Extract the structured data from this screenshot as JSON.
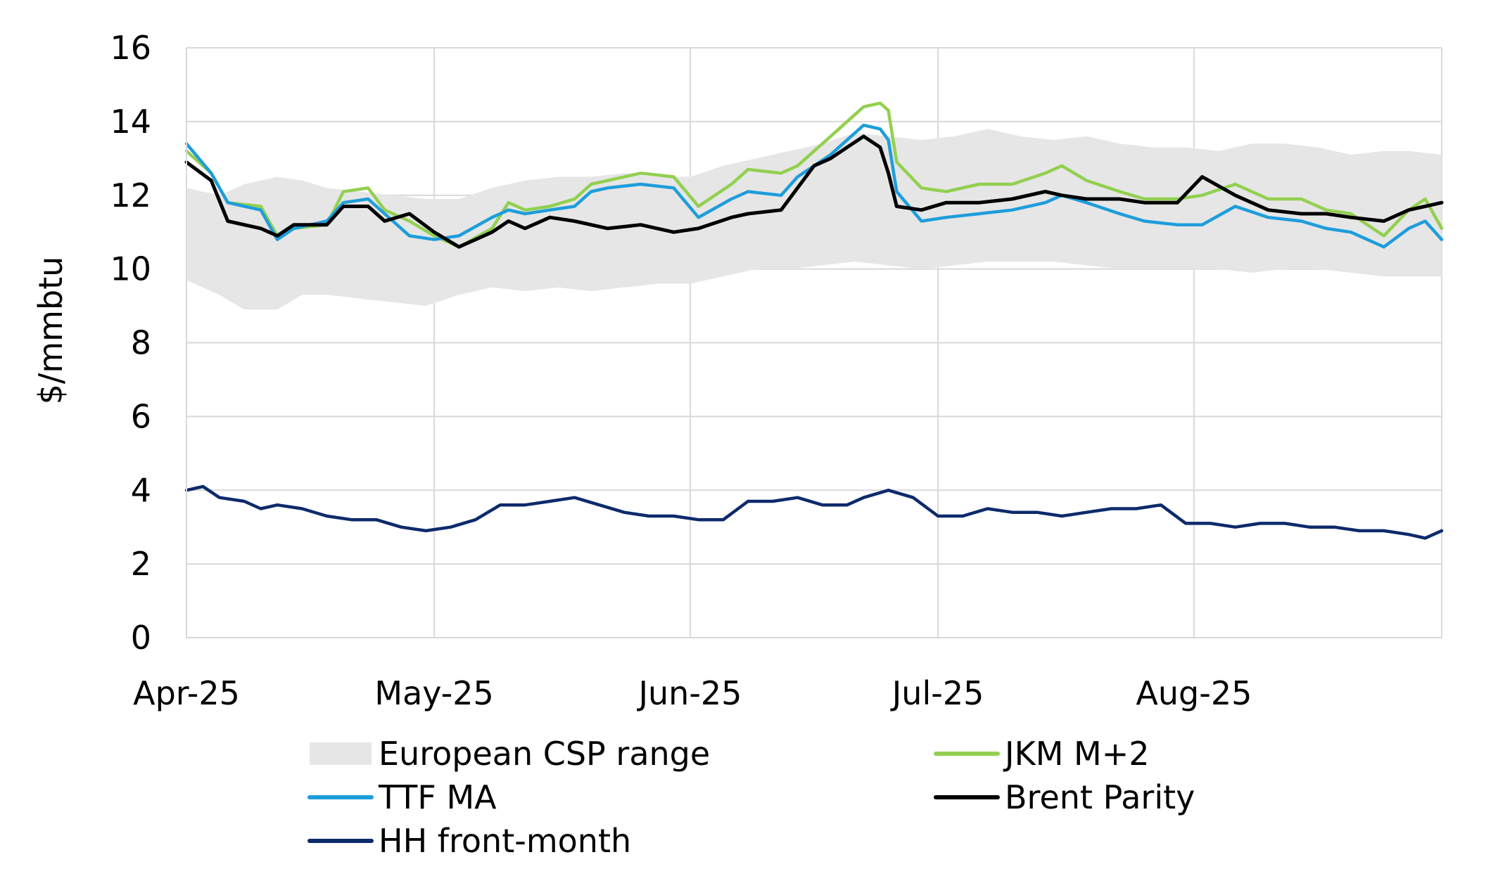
{
  "chart_data": {
    "type": "line",
    "ylabel": "$/mmbtu",
    "xlabel": "",
    "ylim": [
      0,
      16
    ],
    "yticks": [
      0,
      2,
      4,
      6,
      8,
      10,
      12,
      14,
      16
    ],
    "xlim": [
      "2025-04-01",
      "2025-08-31"
    ],
    "xticks": [
      {
        "date": "2025-04-01",
        "label": "Apr-25"
      },
      {
        "date": "2025-05-01",
        "label": "May-25"
      },
      {
        "date": "2025-06-01",
        "label": "Jun-25"
      },
      {
        "date": "2025-07-01",
        "label": "Jul-25"
      },
      {
        "date": "2025-08-01",
        "label": "Aug-25"
      }
    ],
    "grid": true,
    "legend_position": "bottom",
    "colors": {
      "band": "#e6e6e6",
      "jkm": "#92d050",
      "ttf": "#1e9ddb",
      "brent": "#000000",
      "hh": "#0d2a6b",
      "grid": "#d9d9d9"
    },
    "band": {
      "name": "European CSP range",
      "x": [
        "2025-04-01",
        "2025-04-05",
        "2025-04-08",
        "2025-04-12",
        "2025-04-15",
        "2025-04-18",
        "2025-04-22",
        "2025-04-26",
        "2025-04-30",
        "2025-05-04",
        "2025-05-08",
        "2025-05-12",
        "2025-05-16",
        "2025-05-20",
        "2025-05-24",
        "2025-05-28",
        "2025-06-01",
        "2025-06-05",
        "2025-06-09",
        "2025-06-13",
        "2025-06-17",
        "2025-06-21",
        "2025-06-25",
        "2025-06-29",
        "2025-07-03",
        "2025-07-07",
        "2025-07-11",
        "2025-07-15",
        "2025-07-19",
        "2025-07-23",
        "2025-07-27",
        "2025-07-31",
        "2025-08-04",
        "2025-08-08",
        "2025-08-12",
        "2025-08-16",
        "2025-08-20",
        "2025-08-24",
        "2025-08-27",
        "2025-08-31"
      ],
      "low": [
        9.7,
        9.3,
        8.9,
        8.9,
        9.3,
        9.3,
        9.2,
        9.1,
        9.0,
        9.3,
        9.5,
        9.4,
        9.5,
        9.4,
        9.5,
        9.6,
        9.6,
        9.8,
        10.0,
        10.0,
        10.1,
        10.2,
        10.1,
        10.0,
        10.1,
        10.2,
        10.2,
        10.2,
        10.1,
        10.0,
        10.0,
        10.0,
        10.0,
        9.9,
        10.0,
        10.0,
        9.9,
        9.8,
        9.8,
        9.8
      ],
      "high": [
        12.2,
        12.0,
        12.3,
        12.5,
        12.4,
        12.2,
        12.1,
        12.0,
        11.9,
        11.9,
        12.2,
        12.4,
        12.5,
        12.5,
        12.6,
        12.5,
        12.5,
        12.8,
        13.0,
        13.2,
        13.4,
        13.7,
        13.6,
        13.5,
        13.6,
        13.8,
        13.6,
        13.5,
        13.6,
        13.4,
        13.3,
        13.3,
        13.2,
        13.4,
        13.4,
        13.3,
        13.1,
        13.2,
        13.2,
        13.1
      ]
    },
    "series": [
      {
        "name": "JKM M+2",
        "key": "jkm",
        "x": [
          "2025-04-01",
          "2025-04-04",
          "2025-04-06",
          "2025-04-10",
          "2025-04-12",
          "2025-04-14",
          "2025-04-18",
          "2025-04-20",
          "2025-04-23",
          "2025-04-25",
          "2025-04-28",
          "2025-05-01",
          "2025-05-04",
          "2025-05-08",
          "2025-05-10",
          "2025-05-12",
          "2025-05-15",
          "2025-05-18",
          "2025-05-20",
          "2025-05-22",
          "2025-05-26",
          "2025-05-30",
          "2025-06-02",
          "2025-06-06",
          "2025-06-08",
          "2025-06-12",
          "2025-06-14",
          "2025-06-16",
          "2025-06-18",
          "2025-06-20",
          "2025-06-22",
          "2025-06-24",
          "2025-06-25",
          "2025-06-26",
          "2025-06-29",
          "2025-07-02",
          "2025-07-06",
          "2025-07-10",
          "2025-07-14",
          "2025-07-16",
          "2025-07-19",
          "2025-07-23",
          "2025-07-26",
          "2025-07-30",
          "2025-08-02",
          "2025-08-06",
          "2025-08-10",
          "2025-08-14",
          "2025-08-17",
          "2025-08-20",
          "2025-08-24",
          "2025-08-27",
          "2025-08-29",
          "2025-08-31"
        ],
        "values": [
          13.2,
          12.6,
          11.8,
          11.7,
          10.9,
          11.1,
          11.2,
          12.1,
          12.2,
          11.6,
          11.3,
          10.9,
          10.6,
          11.1,
          11.8,
          11.6,
          11.7,
          11.9,
          12.3,
          12.4,
          12.6,
          12.5,
          11.7,
          12.3,
          12.7,
          12.6,
          12.8,
          13.2,
          13.6,
          14.0,
          14.4,
          14.5,
          14.3,
          12.9,
          12.2,
          12.1,
          12.3,
          12.3,
          12.6,
          12.8,
          12.4,
          12.1,
          11.9,
          11.9,
          12.0,
          12.3,
          11.9,
          11.9,
          11.6,
          11.5,
          10.9,
          11.6,
          11.9,
          11.1
        ]
      },
      {
        "name": "TTF MA",
        "key": "ttf",
        "x": [
          "2025-04-01",
          "2025-04-04",
          "2025-04-06",
          "2025-04-10",
          "2025-04-12",
          "2025-04-14",
          "2025-04-18",
          "2025-04-20",
          "2025-04-23",
          "2025-04-25",
          "2025-04-28",
          "2025-05-01",
          "2025-05-04",
          "2025-05-08",
          "2025-05-10",
          "2025-05-12",
          "2025-05-15",
          "2025-05-18",
          "2025-05-20",
          "2025-05-22",
          "2025-05-26",
          "2025-05-30",
          "2025-06-02",
          "2025-06-06",
          "2025-06-08",
          "2025-06-12",
          "2025-06-14",
          "2025-06-16",
          "2025-06-18",
          "2025-06-20",
          "2025-06-22",
          "2025-06-24",
          "2025-06-25",
          "2025-06-26",
          "2025-06-29",
          "2025-07-02",
          "2025-07-06",
          "2025-07-10",
          "2025-07-14",
          "2025-07-16",
          "2025-07-19",
          "2025-07-23",
          "2025-07-26",
          "2025-07-30",
          "2025-08-02",
          "2025-08-06",
          "2025-08-10",
          "2025-08-14",
          "2025-08-17",
          "2025-08-20",
          "2025-08-24",
          "2025-08-27",
          "2025-08-29",
          "2025-08-31"
        ],
        "values": [
          13.4,
          12.6,
          11.8,
          11.6,
          10.8,
          11.1,
          11.3,
          11.8,
          11.9,
          11.5,
          10.9,
          10.8,
          10.9,
          11.4,
          11.6,
          11.5,
          11.6,
          11.7,
          12.1,
          12.2,
          12.3,
          12.2,
          11.4,
          11.9,
          12.1,
          12.0,
          12.5,
          12.8,
          13.1,
          13.5,
          13.9,
          13.8,
          13.5,
          12.1,
          11.3,
          11.4,
          11.5,
          11.6,
          11.8,
          12.0,
          11.8,
          11.5,
          11.3,
          11.2,
          11.2,
          11.7,
          11.4,
          11.3,
          11.1,
          11.0,
          10.6,
          11.1,
          11.3,
          10.8
        ]
      },
      {
        "name": "Brent Parity",
        "key": "brent",
        "x": [
          "2025-04-01",
          "2025-04-04",
          "2025-04-06",
          "2025-04-10",
          "2025-04-12",
          "2025-04-14",
          "2025-04-18",
          "2025-04-20",
          "2025-04-23",
          "2025-04-25",
          "2025-04-28",
          "2025-05-01",
          "2025-05-04",
          "2025-05-08",
          "2025-05-10",
          "2025-05-12",
          "2025-05-15",
          "2025-05-18",
          "2025-05-20",
          "2025-05-22",
          "2025-05-26",
          "2025-05-30",
          "2025-06-02",
          "2025-06-06",
          "2025-06-08",
          "2025-06-12",
          "2025-06-14",
          "2025-06-16",
          "2025-06-18",
          "2025-06-20",
          "2025-06-22",
          "2025-06-24",
          "2025-06-25",
          "2025-06-26",
          "2025-06-29",
          "2025-07-02",
          "2025-07-06",
          "2025-07-10",
          "2025-07-14",
          "2025-07-16",
          "2025-07-19",
          "2025-07-23",
          "2025-07-26",
          "2025-07-30",
          "2025-08-02",
          "2025-08-06",
          "2025-08-10",
          "2025-08-14",
          "2025-08-17",
          "2025-08-20",
          "2025-08-24",
          "2025-08-27",
          "2025-08-29",
          "2025-08-31"
        ],
        "values": [
          12.9,
          12.4,
          11.3,
          11.1,
          10.9,
          11.2,
          11.2,
          11.7,
          11.7,
          11.3,
          11.5,
          11.0,
          10.6,
          11.0,
          11.3,
          11.1,
          11.4,
          11.3,
          11.2,
          11.1,
          11.2,
          11.0,
          11.1,
          11.4,
          11.5,
          11.6,
          12.2,
          12.8,
          13.0,
          13.3,
          13.6,
          13.3,
          12.6,
          11.7,
          11.6,
          11.8,
          11.8,
          11.9,
          12.1,
          12.0,
          11.9,
          11.9,
          11.8,
          11.8,
          12.5,
          12.0,
          11.6,
          11.5,
          11.5,
          11.4,
          11.3,
          11.6,
          11.7,
          11.8
        ]
      },
      {
        "name": "HH front-month",
        "key": "hh",
        "x": [
          "2025-04-01",
          "2025-04-03",
          "2025-04-05",
          "2025-04-08",
          "2025-04-10",
          "2025-04-12",
          "2025-04-15",
          "2025-04-18",
          "2025-04-21",
          "2025-04-24",
          "2025-04-27",
          "2025-04-30",
          "2025-05-03",
          "2025-05-06",
          "2025-05-09",
          "2025-05-12",
          "2025-05-15",
          "2025-05-18",
          "2025-05-21",
          "2025-05-24",
          "2025-05-27",
          "2025-05-30",
          "2025-06-02",
          "2025-06-05",
          "2025-06-08",
          "2025-06-11",
          "2025-06-14",
          "2025-06-17",
          "2025-06-20",
          "2025-06-22",
          "2025-06-25",
          "2025-06-28",
          "2025-07-01",
          "2025-07-04",
          "2025-07-07",
          "2025-07-10",
          "2025-07-13",
          "2025-07-16",
          "2025-07-19",
          "2025-07-22",
          "2025-07-25",
          "2025-07-28",
          "2025-07-31",
          "2025-08-03",
          "2025-08-06",
          "2025-08-09",
          "2025-08-12",
          "2025-08-15",
          "2025-08-18",
          "2025-08-21",
          "2025-08-24",
          "2025-08-27",
          "2025-08-29",
          "2025-08-31"
        ],
        "values": [
          4.0,
          4.1,
          3.8,
          3.7,
          3.5,
          3.6,
          3.5,
          3.3,
          3.2,
          3.2,
          3.0,
          2.9,
          3.0,
          3.2,
          3.6,
          3.6,
          3.7,
          3.8,
          3.6,
          3.4,
          3.3,
          3.3,
          3.2,
          3.2,
          3.7,
          3.7,
          3.8,
          3.6,
          3.6,
          3.8,
          4.0,
          3.8,
          3.3,
          3.3,
          3.5,
          3.4,
          3.4,
          3.3,
          3.4,
          3.5,
          3.5,
          3.6,
          3.1,
          3.1,
          3.0,
          3.1,
          3.1,
          3.0,
          3.0,
          2.9,
          2.9,
          2.8,
          2.7,
          2.9
        ]
      }
    ],
    "legend": [
      {
        "key": "band",
        "label": "European CSP range"
      },
      {
        "key": "jkm",
        "label": "JKM M+2"
      },
      {
        "key": "ttf",
        "label": "TTF MA"
      },
      {
        "key": "brent",
        "label": "Brent Parity"
      },
      {
        "key": "hh",
        "label": "HH front-month"
      }
    ]
  }
}
